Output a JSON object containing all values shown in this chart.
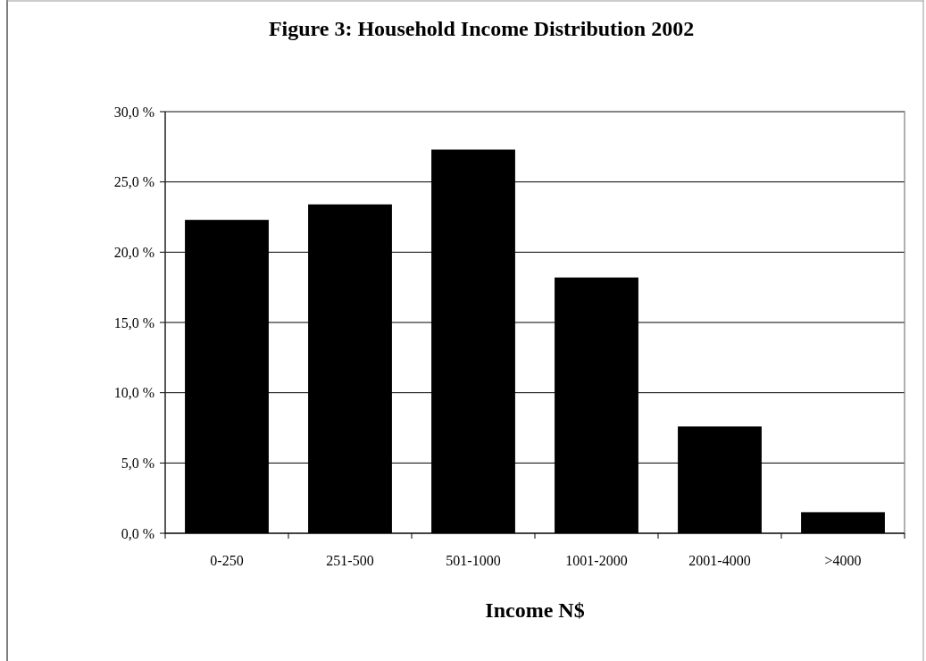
{
  "chart_data": {
    "type": "bar",
    "title": "Figure 3: Household Income Distribution 2002",
    "xlabel": "Income N$",
    "categories": [
      "0-250",
      "251-500",
      "501-1000",
      "1001-2000",
      "2001-4000",
      ">4000"
    ],
    "values": [
      22.3,
      23.4,
      27.3,
      18.2,
      7.6,
      1.5
    ],
    "color": "#000000",
    "ylim": [
      0,
      30
    ],
    "yticks": [
      {
        "value": 0,
        "label": "0,0 %"
      },
      {
        "value": 5,
        "label": "5,0 %"
      },
      {
        "value": 10,
        "label": "10,0 %"
      },
      {
        "value": 15,
        "label": "15,0 %"
      },
      {
        "value": 20,
        "label": "20,0 %"
      },
      {
        "value": 25,
        "label": "25,0 %"
      },
      {
        "value": 30,
        "label": "30,0 %"
      }
    ],
    "grid": "y"
  }
}
